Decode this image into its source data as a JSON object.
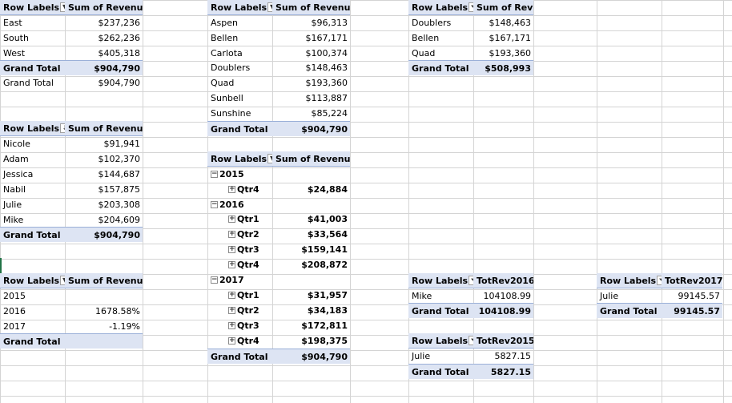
{
  "pivots": {
    "region": {
      "header": {
        "label": "Row Labels",
        "value": "Sum of Revenue"
      },
      "rows": [
        {
          "label": "East",
          "value": "$237,236"
        },
        {
          "label": "South",
          "value": "$262,236"
        },
        {
          "label": "West",
          "value": "$405,318"
        }
      ],
      "total": {
        "label": "Grand Total",
        "value": "$904,790"
      },
      "extra": {
        "label": "Grand Total",
        "value": "$904,790"
      }
    },
    "rep": {
      "header": {
        "label": "Row Labels",
        "value": "Sum of Revenue"
      },
      "rows": [
        {
          "label": "Nicole",
          "value": "$91,941"
        },
        {
          "label": "Adam",
          "value": "$102,370"
        },
        {
          "label": "Jessica",
          "value": "$144,687"
        },
        {
          "label": "Nabil",
          "value": "$157,875"
        },
        {
          "label": "Julie",
          "value": "$203,308"
        },
        {
          "label": "Mike",
          "value": "$204,609"
        }
      ],
      "total": {
        "label": "Grand Total",
        "value": "$904,790"
      }
    },
    "year_pct": {
      "header": {
        "label": "Row Labels",
        "value": "Sum of Revenue"
      },
      "rows": [
        {
          "label": "2015",
          "value": ""
        },
        {
          "label": "2016",
          "value": "1678.58%"
        },
        {
          "label": "2017",
          "value": "-1.19%"
        }
      ],
      "total": {
        "label": "Grand Total",
        "value": ""
      }
    },
    "product": {
      "header": {
        "label": "Row Labels",
        "value": "Sum of Revenue"
      },
      "rows": [
        {
          "label": "Aspen",
          "value": "$96,313"
        },
        {
          "label": "Bellen",
          "value": "$167,171"
        },
        {
          "label": "Carlota",
          "value": "$100,374"
        },
        {
          "label": "Doublers",
          "value": "$148,463"
        },
        {
          "label": "Quad",
          "value": "$193,360"
        },
        {
          "label": "Sunbell",
          "value": "$113,887"
        },
        {
          "label": "Sunshine",
          "value": "$85,224"
        }
      ],
      "total": {
        "label": "Grand Total",
        "value": "$904,790"
      }
    },
    "quarter": {
      "header": {
        "label": "Row Labels",
        "value": "Sum of Revenue"
      },
      "rows": [
        {
          "label": "2015",
          "value": "",
          "level": 0
        },
        {
          "label": "Qtr4",
          "value": "$24,884",
          "level": 1
        },
        {
          "label": "2016",
          "value": "",
          "level": 0
        },
        {
          "label": "Qtr1",
          "value": "$41,003",
          "level": 1
        },
        {
          "label": "Qtr2",
          "value": "$33,564",
          "level": 1
        },
        {
          "label": "Qtr3",
          "value": "$159,141",
          "level": 1
        },
        {
          "label": "Qtr4",
          "value": "$208,872",
          "level": 1
        },
        {
          "label": "2017",
          "value": "",
          "level": 0
        },
        {
          "label": "Qtr1",
          "value": "$31,957",
          "level": 1
        },
        {
          "label": "Qtr2",
          "value": "$34,183",
          "level": 1
        },
        {
          "label": "Qtr3",
          "value": "$172,811",
          "level": 1
        },
        {
          "label": "Qtr4",
          "value": "$198,375",
          "level": 1
        }
      ],
      "total": {
        "label": "Grand Total",
        "value": "$904,790"
      }
    },
    "filtered_product": {
      "header": {
        "label": "Row Labels",
        "value": "Sum of Revenue"
      },
      "rows": [
        {
          "label": "Doublers",
          "value": "$148,463"
        },
        {
          "label": "Bellen",
          "value": "$167,171"
        },
        {
          "label": "Quad",
          "value": "$193,360"
        }
      ],
      "total": {
        "label": "Grand Total",
        "value": "$508,993"
      }
    },
    "rev2016": {
      "header": {
        "label": "Row Labels",
        "value": "TotRev2016"
      },
      "rows": [
        {
          "label": "Mike",
          "value": "104108.99"
        }
      ],
      "total": {
        "label": "Grand Total",
        "value": "104108.99"
      }
    },
    "rev2015": {
      "header": {
        "label": "Row Labels",
        "value": "TotRev2015"
      },
      "rows": [
        {
          "label": "Julie",
          "value": "5827.15"
        }
      ],
      "total": {
        "label": "Grand Total",
        "value": "5827.15"
      }
    },
    "rev2017": {
      "header": {
        "label": "Row Labels",
        "value": "TotRev2017"
      },
      "rows": [
        {
          "label": "Julie",
          "value": "99145.57"
        }
      ],
      "total": {
        "label": "Grand Total",
        "value": "99145.57"
      }
    }
  },
  "icons": {
    "dropdown": "dropdown-arrow-icon",
    "filter": "filter-funnel-icon",
    "sort": "sort-ascending-icon",
    "collapse": "collapse-minus-icon",
    "expand": "expand-plus-icon"
  },
  "colors": {
    "pivot_header": "#dde4f3",
    "pivot_border": "#9bb0d8",
    "gridline": "#d4d4d4",
    "selection": "#217346"
  }
}
